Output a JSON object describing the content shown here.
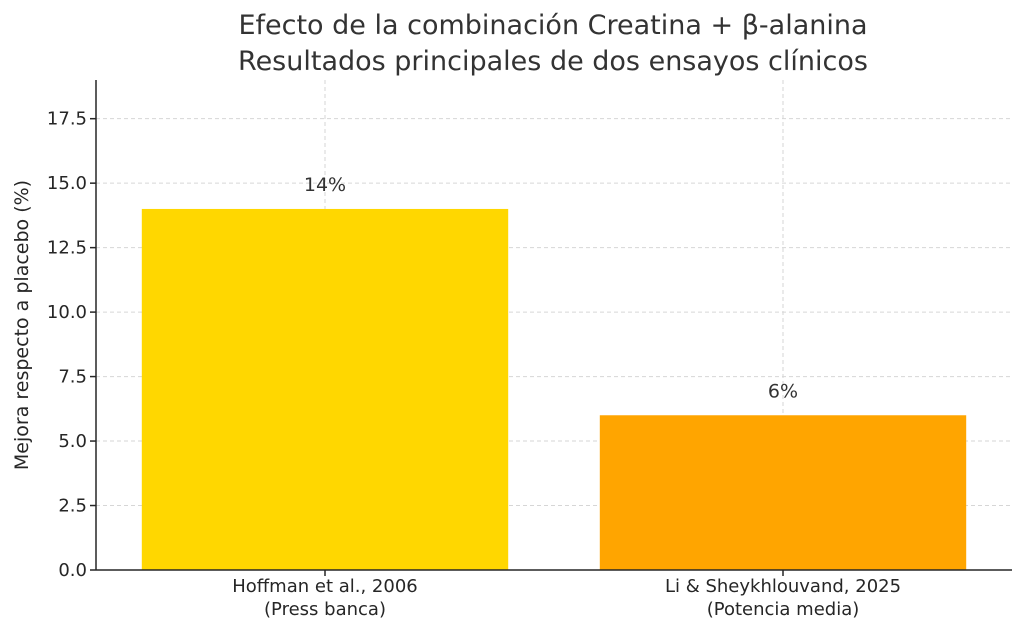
{
  "chart_data": {
    "type": "bar",
    "title_lines": [
      "Efecto de la combinación Creatina + β-alanina",
      "Resultados principales de dos ensayos clínicos"
    ],
    "ylabel": "Mejora respecto a placebo (%)",
    "xlabel": "",
    "ylim": [
      0,
      19
    ],
    "yticks": [
      "0.0",
      "2.5",
      "5.0",
      "7.5",
      "10.0",
      "12.5",
      "15.0",
      "17.5"
    ],
    "ytick_values": [
      0,
      2.5,
      5,
      7.5,
      10,
      12.5,
      15,
      17.5
    ],
    "grid": true,
    "categories": [
      [
        "Hoffman et al., 2006",
        "(Press banca)"
      ],
      [
        "Li & Sheykhlouvand, 2025",
        "(Potencia media)"
      ]
    ],
    "values": [
      14,
      6
    ],
    "data_labels": [
      "14%",
      "6%"
    ],
    "colors": [
      "#FFD700",
      "#FFA500"
    ]
  }
}
